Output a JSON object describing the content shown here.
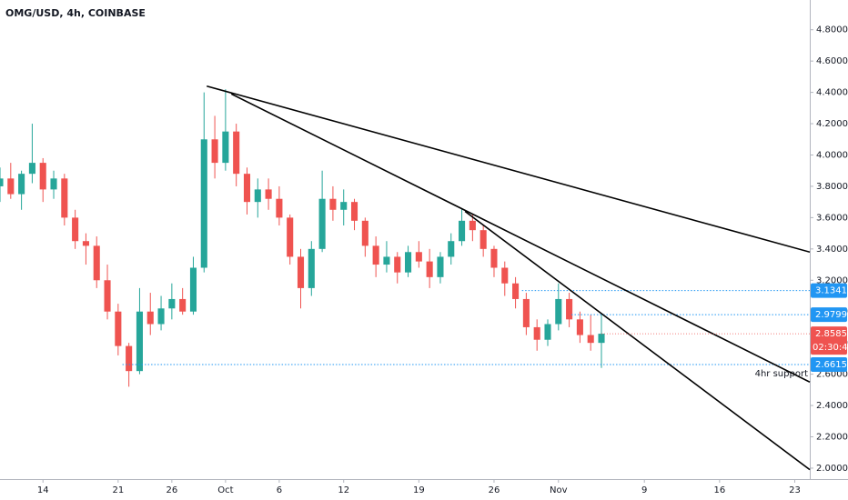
{
  "chart_data": {
    "type": "candlestick",
    "title": "OMG/USD, 4h, COINBASE",
    "x": [
      10,
      11,
      12,
      13,
      14,
      15,
      16,
      17,
      18,
      19,
      20,
      21,
      22,
      23,
      24,
      25,
      26,
      27,
      28,
      29,
      30,
      31,
      32,
      33,
      34,
      35,
      36,
      37,
      38,
      39,
      40,
      41,
      42,
      43,
      44,
      45,
      46,
      47,
      48,
      49,
      50,
      51,
      52,
      53,
      54,
      55,
      56,
      57,
      58,
      59,
      60,
      61,
      62,
      63,
      64,
      65,
      66
    ],
    "open": [
      3.8,
      3.85,
      3.75,
      3.88,
      3.95,
      3.78,
      3.85,
      3.6,
      3.45,
      3.42,
      3.2,
      3.0,
      2.78,
      2.62,
      3.0,
      2.92,
      3.02,
      3.08,
      3.0,
      3.28,
      4.1,
      3.95,
      4.15,
      3.88,
      3.7,
      3.78,
      3.72,
      3.6,
      3.35,
      3.15,
      3.4,
      3.72,
      3.65,
      3.7,
      3.58,
      3.42,
      3.3,
      3.35,
      3.25,
      3.38,
      3.32,
      3.22,
      3.35,
      3.45,
      3.58,
      3.52,
      3.4,
      3.28,
      3.18,
      3.08,
      2.9,
      2.82,
      2.92,
      3.08,
      2.95,
      2.85,
      2.8
    ],
    "high": [
      3.92,
      3.95,
      3.9,
      4.2,
      3.98,
      3.9,
      3.88,
      3.65,
      3.5,
      3.48,
      3.3,
      3.05,
      2.8,
      3.15,
      3.12,
      3.1,
      3.18,
      3.15,
      3.35,
      4.4,
      4.25,
      4.42,
      4.2,
      3.92,
      3.85,
      3.85,
      3.8,
      3.62,
      3.4,
      3.45,
      3.9,
      3.8,
      3.78,
      3.72,
      3.6,
      3.48,
      3.45,
      3.38,
      3.42,
      3.45,
      3.4,
      3.38,
      3.5,
      3.66,
      3.62,
      3.55,
      3.42,
      3.32,
      3.22,
      3.12,
      2.95,
      2.95,
      3.18,
      3.12,
      3.0,
      2.98,
      2.98
    ],
    "low": [
      3.7,
      3.72,
      3.65,
      3.82,
      3.7,
      3.72,
      3.55,
      3.4,
      3.3,
      3.15,
      2.95,
      2.72,
      2.52,
      2.6,
      2.85,
      2.88,
      2.95,
      2.98,
      2.98,
      3.25,
      3.85,
      3.9,
      3.8,
      3.62,
      3.6,
      3.65,
      3.55,
      3.3,
      3.02,
      3.1,
      3.38,
      3.58,
      3.55,
      3.52,
      3.35,
      3.22,
      3.25,
      3.18,
      3.22,
      3.28,
      3.15,
      3.18,
      3.3,
      3.42,
      3.45,
      3.35,
      3.22,
      3.1,
      3.02,
      2.85,
      2.75,
      2.78,
      2.88,
      2.9,
      2.8,
      2.75,
      2.64
    ],
    "close": [
      3.85,
      3.75,
      3.88,
      3.95,
      3.78,
      3.85,
      3.6,
      3.45,
      3.42,
      3.2,
      3.0,
      2.78,
      2.62,
      3.0,
      2.92,
      3.02,
      3.08,
      3.0,
      3.28,
      4.1,
      3.95,
      4.15,
      3.88,
      3.7,
      3.78,
      3.72,
      3.6,
      3.35,
      3.15,
      3.4,
      3.72,
      3.65,
      3.7,
      3.58,
      3.42,
      3.3,
      3.35,
      3.25,
      3.38,
      3.32,
      3.22,
      3.35,
      3.45,
      3.58,
      3.52,
      3.4,
      3.28,
      3.18,
      3.08,
      2.9,
      2.82,
      2.92,
      3.08,
      2.95,
      2.85,
      2.8,
      2.8585
    ],
    "up_color": "#26a69a",
    "down_color": "#ef5350",
    "xlim": [
      10,
      85.4
    ],
    "xticks": [
      {
        "value": 14,
        "label": "14"
      },
      {
        "value": 21,
        "label": "21"
      },
      {
        "value": 26,
        "label": "26"
      },
      {
        "value": 31,
        "label": "Oct"
      },
      {
        "value": 36,
        "label": "6"
      },
      {
        "value": 42,
        "label": "12"
      },
      {
        "value": 49,
        "label": "19"
      },
      {
        "value": 56,
        "label": "26"
      },
      {
        "value": 62,
        "label": "Nov"
      },
      {
        "value": 70,
        "label": "9"
      },
      {
        "value": 77,
        "label": "16"
      },
      {
        "value": 84,
        "label": "23"
      }
    ],
    "ylim": [
      1.93,
      4.99
    ],
    "yticks": [
      {
        "value": 2.0,
        "label": "2.0000"
      },
      {
        "value": 2.2,
        "label": "2.2000"
      },
      {
        "value": 2.4,
        "label": "2.4000"
      },
      {
        "value": 2.6,
        "label": "2.6000"
      },
      {
        "value": 2.8,
        "label": "2.8000"
      },
      {
        "value": 3.0,
        "label": "3.0000"
      },
      {
        "value": 3.2,
        "label": "3.2000"
      },
      {
        "value": 3.4,
        "label": "3.4000"
      },
      {
        "value": 3.6,
        "label": "3.6000"
      },
      {
        "value": 3.8,
        "label": "3.8000"
      },
      {
        "value": 4.0,
        "label": "4.0000"
      },
      {
        "value": 4.2,
        "label": "4.2000"
      },
      {
        "value": 4.4,
        "label": "4.4000"
      },
      {
        "value": 4.6,
        "label": "4.6000"
      },
      {
        "value": 4.8,
        "label": "4.8000"
      }
    ],
    "grid": false,
    "trendlines": [
      {
        "x": [
          29.25,
          85.4
        ],
        "y": [
          4.44,
          3.38
        ],
        "color": "#000000"
      },
      {
        "x": [
          31.54,
          85.4
        ],
        "y": [
          4.39,
          2.55
        ],
        "color": "#000000"
      },
      {
        "x": [
          53.3,
          85.4
        ],
        "y": [
          3.64,
          1.99
        ],
        "color": "#000000"
      }
    ],
    "levels": [
      {
        "value": 3.1341,
        "from": 58.6,
        "color": "#2196f3"
      },
      {
        "value": 2.9799,
        "from": 63.2,
        "color": "#2196f3"
      },
      {
        "value": 2.6615,
        "from": 21.4,
        "color": "#2196f3",
        "note": "4hr support"
      }
    ],
    "last_price": 2.8585,
    "last_price_color": "#ef5350",
    "countdown": "02:30:42"
  }
}
